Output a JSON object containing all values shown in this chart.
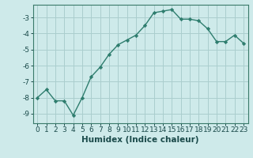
{
  "x": [
    0,
    1,
    2,
    3,
    4,
    5,
    6,
    7,
    8,
    9,
    10,
    11,
    12,
    13,
    14,
    15,
    16,
    17,
    18,
    19,
    20,
    21,
    22,
    23
  ],
  "y": [
    -8.0,
    -7.5,
    -8.2,
    -8.2,
    -9.1,
    -8.0,
    -6.7,
    -6.1,
    -5.3,
    -4.7,
    -4.4,
    -4.1,
    -3.5,
    -2.7,
    -2.6,
    -2.5,
    -3.1,
    -3.1,
    -3.2,
    -3.7,
    -4.5,
    -4.5,
    -4.1,
    -4.6
  ],
  "line_color": "#2e7d6e",
  "marker": "D",
  "marker_size": 2.2,
  "bg_color": "#ceeaea",
  "grid_color": "#aacece",
  "xlabel": "Humidex (Indice chaleur)",
  "xlim": [
    -0.5,
    23.5
  ],
  "ylim": [
    -9.6,
    -2.2
  ],
  "yticks": [
    -9,
    -8,
    -7,
    -6,
    -5,
    -4,
    -3
  ],
  "xticks": [
    0,
    1,
    2,
    3,
    4,
    5,
    6,
    7,
    8,
    9,
    10,
    11,
    12,
    13,
    14,
    15,
    16,
    17,
    18,
    19,
    20,
    21,
    22,
    23
  ],
  "tick_fontsize": 6.5,
  "xlabel_fontsize": 7.5,
  "line_width": 1.0
}
